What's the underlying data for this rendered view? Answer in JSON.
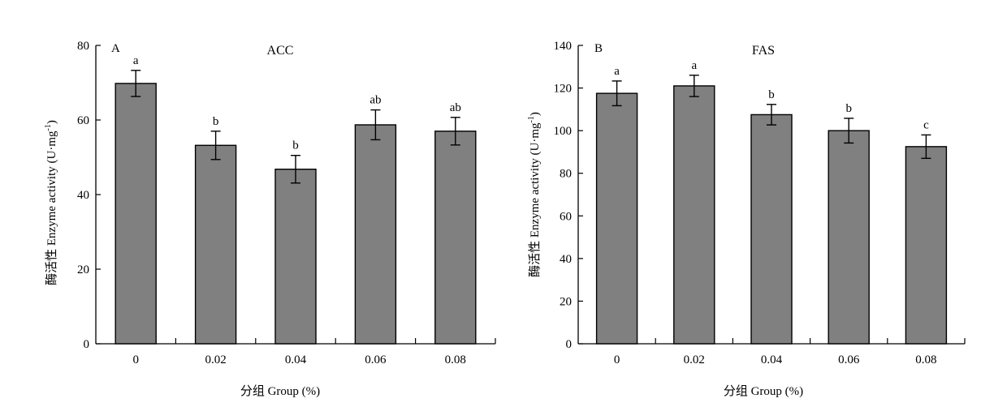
{
  "chart_data": [
    {
      "type": "bar",
      "panel_label": "A",
      "title": "ACC",
      "xlabel": "分组 Group (%)",
      "ylabel": "酶活性 Enzyme activity (U·mg",
      "ylabel_sup": "-1",
      "ylabel_close": ")",
      "categories": [
        "0",
        "0.02",
        "0.04",
        "0.06",
        "0.08"
      ],
      "values": [
        69.8,
        53.2,
        46.8,
        58.7,
        57.0
      ],
      "errors": [
        3.5,
        3.8,
        3.7,
        4.0,
        3.7
      ],
      "significance": [
        "a",
        "b",
        "b",
        "ab",
        "ab"
      ],
      "ylim": [
        0,
        80
      ],
      "yticks": [
        "0",
        "20",
        "40",
        "60",
        "80"
      ],
      "bar_color": "#808080"
    },
    {
      "type": "bar",
      "panel_label": "B",
      "title": "FAS",
      "xlabel": "分组 Group (%)",
      "ylabel": "酶活性 Enzyme activity (U·mg",
      "ylabel_sup": "-1",
      "ylabel_close": ")",
      "categories": [
        "0",
        "0.02",
        "0.04",
        "0.06",
        "0.08"
      ],
      "values": [
        117.5,
        121.0,
        107.5,
        100.0,
        92.5
      ],
      "errors": [
        5.8,
        5.0,
        4.8,
        5.8,
        5.5
      ],
      "significance": [
        "a",
        "a",
        "b",
        "b",
        "c"
      ],
      "ylim": [
        0,
        140
      ],
      "yticks": [
        "0",
        "20",
        "40",
        "60",
        "80",
        "100",
        "120",
        "140"
      ],
      "bar_color": "#808080"
    }
  ]
}
